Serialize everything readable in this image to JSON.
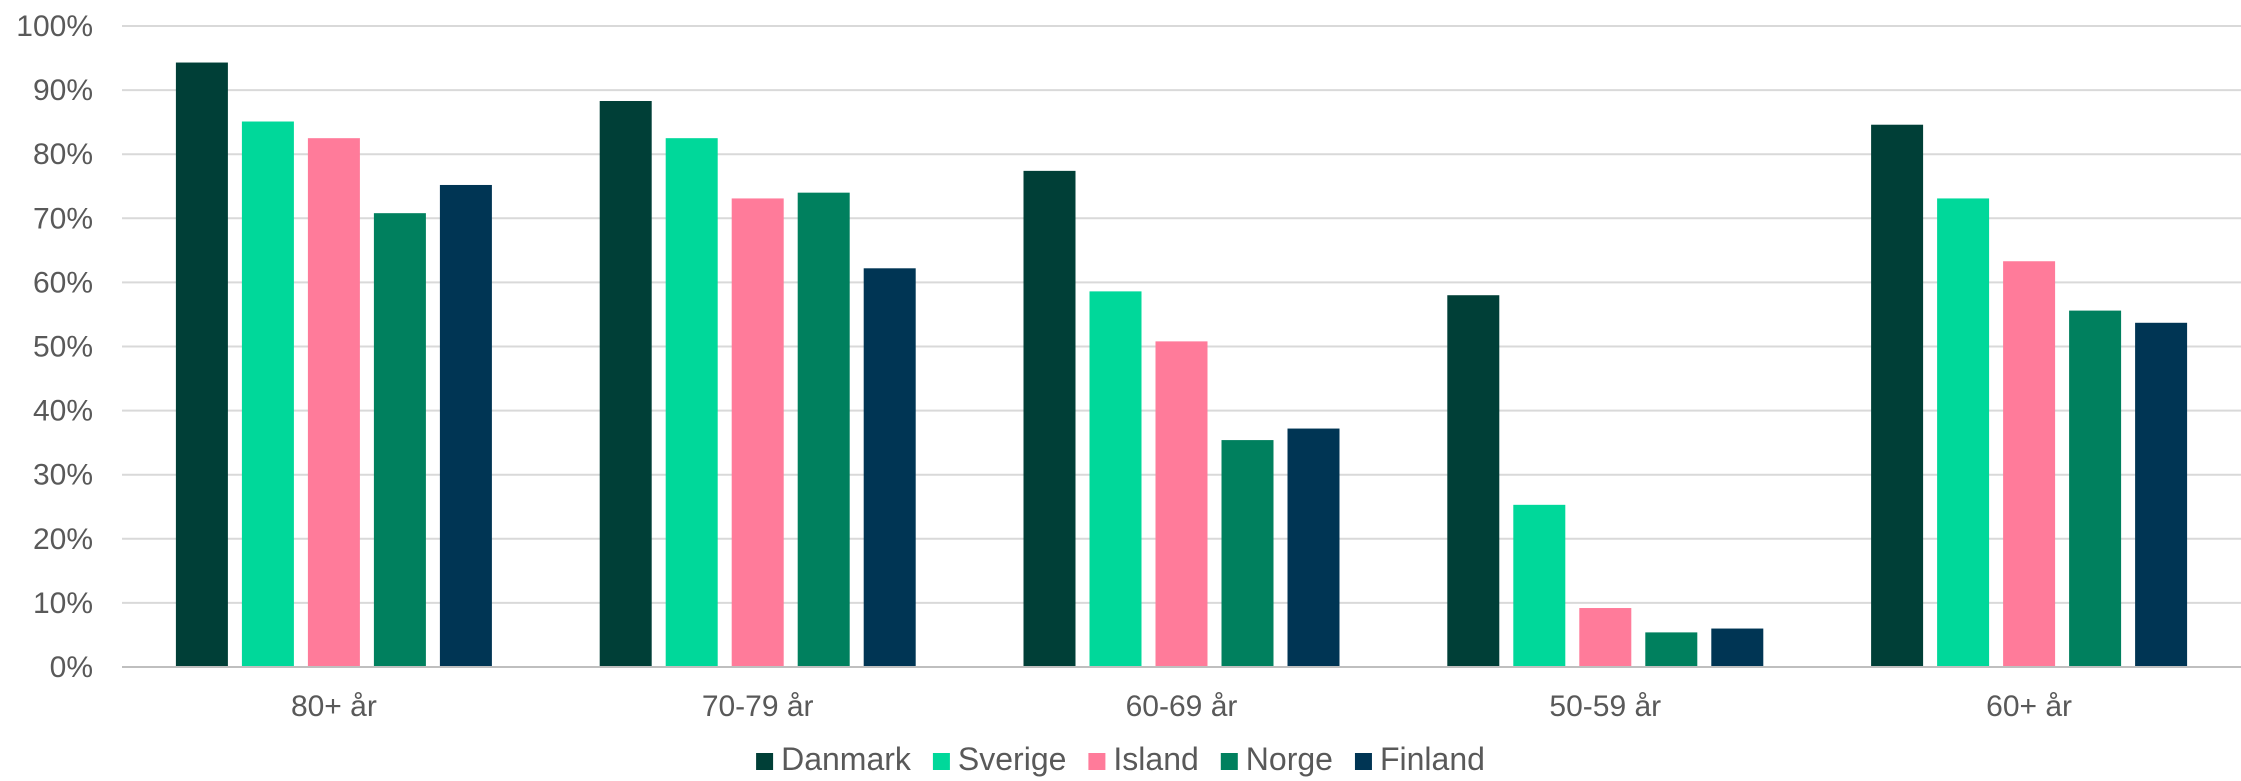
{
  "chart_data": {
    "type": "bar",
    "title": "",
    "xlabel": "",
    "ylabel": "",
    "categories": [
      "80+ år",
      "70-79 år",
      "60-69 år",
      "50-59 år",
      "60+ år"
    ],
    "series": [
      {
        "name": "Danmark",
        "color": "#003f37",
        "values": [
          94.3,
          88.3,
          77.4,
          58.0,
          84.6
        ]
      },
      {
        "name": "Sverige",
        "color": "#00d89a",
        "values": [
          85.1,
          82.5,
          58.6,
          25.3,
          73.1
        ]
      },
      {
        "name": "Island",
        "color": "#ff7b9a",
        "values": [
          82.5,
          73.1,
          50.8,
          9.2,
          63.3
        ]
      },
      {
        "name": "Norge",
        "color": "#00805e",
        "values": [
          70.8,
          74.0,
          35.4,
          5.4,
          55.6
        ]
      },
      {
        "name": "Finland",
        "color": "#003554",
        "values": [
          75.2,
          62.2,
          37.2,
          6.0,
          53.7
        ]
      }
    ],
    "ylim": [
      0,
      100
    ],
    "yticks": [
      0,
      10,
      20,
      30,
      40,
      50,
      60,
      70,
      80,
      90,
      100
    ],
    "ytick_labels": [
      "0%",
      "10%",
      "20%",
      "30%",
      "40%",
      "50%",
      "60%",
      "70%",
      "80%",
      "90%",
      "100%"
    ],
    "grid": true,
    "legend_position": "bottom"
  }
}
